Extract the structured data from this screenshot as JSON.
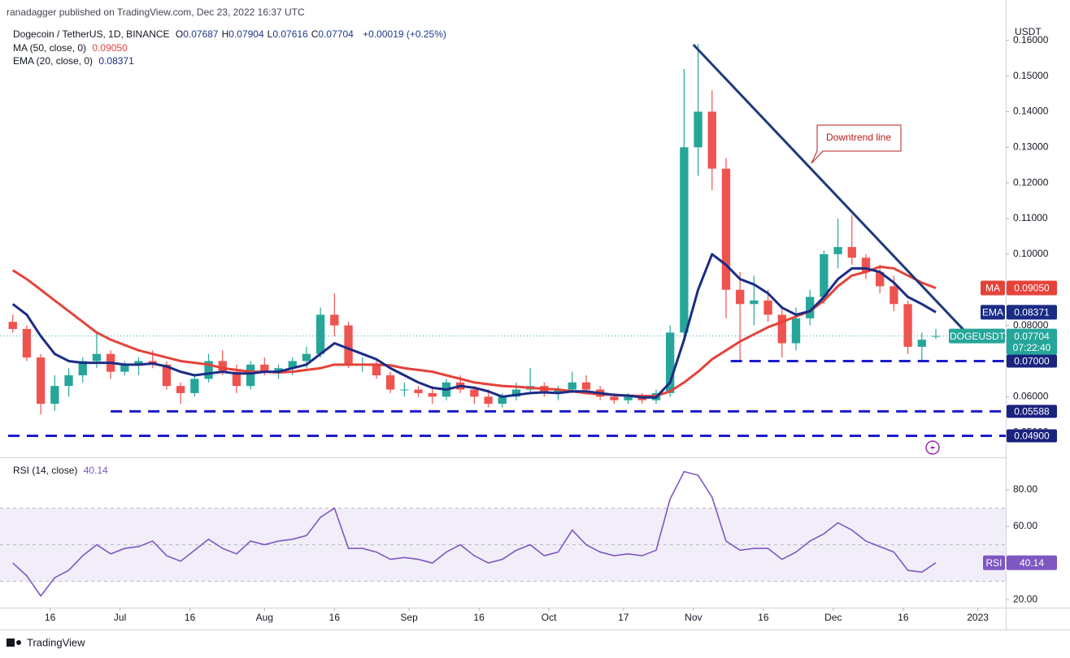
{
  "header": {
    "attribution": "ranadagger published on TradingView.com, Dec 23, 2022 16:37 UTC",
    "symbol": "Dogecoin / TetherUS, 1D, BINANCE",
    "ohlc": [
      {
        "key": "O",
        "label": "0.07687"
      },
      {
        "key": "H",
        "label": "0.07904"
      },
      {
        "key": "L",
        "label": "0.07616"
      },
      {
        "key": "C",
        "label": "0.07704"
      }
    ],
    "change": "+0.00019 (+0.25%)"
  },
  "footer": "TradingView",
  "chart_data": [
    {
      "type": "candlestick",
      "y_axis_label": "USDT",
      "symbol_tag": "DOGEUSDT",
      "last_close_label": "0.07704",
      "countdown": "07:22:40",
      "up_color": "#26a69a",
      "down_color": "#ef5350",
      "xlim": [
        "2022-06-07",
        "2023-01-07"
      ],
      "xticks": [
        {
          "value": "2022-06-16",
          "label": "16"
        },
        {
          "value": "2022-07-01",
          "label": "Jul"
        },
        {
          "value": "2022-07-16",
          "label": "16"
        },
        {
          "value": "2022-08-01",
          "label": "Aug"
        },
        {
          "value": "2022-08-16",
          "label": "16"
        },
        {
          "value": "2022-09-01",
          "label": "Sep"
        },
        {
          "value": "2022-09-16",
          "label": "16"
        },
        {
          "value": "2022-10-01",
          "label": "Oct"
        },
        {
          "value": "2022-10-17",
          "label": "17"
        },
        {
          "value": "2022-11-01",
          "label": "Nov"
        },
        {
          "value": "2022-11-16",
          "label": "16"
        },
        {
          "value": "2022-12-01",
          "label": "Dec"
        },
        {
          "value": "2022-12-16",
          "label": "16"
        },
        {
          "value": "2023-01-01",
          "label": "2023"
        }
      ],
      "ylim": [
        0.0432,
        0.1645
      ],
      "yticks": [
        {
          "value": 0.05,
          "label": "0.05000"
        },
        {
          "value": 0.06,
          "label": "0.06000"
        },
        {
          "value": 0.07,
          "label": "0.07000"
        },
        {
          "value": 0.08,
          "label": "0.08000"
        },
        {
          "value": 0.09,
          "label": "0.09000"
        },
        {
          "value": 0.1,
          "label": "0.10000"
        },
        {
          "value": 0.11,
          "label": "0.11000"
        },
        {
          "value": 0.12,
          "label": "0.12000"
        },
        {
          "value": 0.13,
          "label": "0.13000"
        },
        {
          "value": 0.14,
          "label": "0.14000"
        },
        {
          "value": 0.15,
          "label": "0.15000"
        },
        {
          "value": 0.16,
          "label": "0.16000"
        }
      ],
      "x": [
        "2022-06-08",
        "2022-06-11",
        "2022-06-14",
        "2022-06-17",
        "2022-06-20",
        "2022-06-23",
        "2022-06-26",
        "2022-06-29",
        "2022-07-02",
        "2022-07-05",
        "2022-07-08",
        "2022-07-11",
        "2022-07-14",
        "2022-07-17",
        "2022-07-20",
        "2022-07-23",
        "2022-07-26",
        "2022-07-29",
        "2022-08-01",
        "2022-08-04",
        "2022-08-07",
        "2022-08-10",
        "2022-08-13",
        "2022-08-16",
        "2022-08-19",
        "2022-08-22",
        "2022-08-25",
        "2022-08-28",
        "2022-08-31",
        "2022-09-03",
        "2022-09-06",
        "2022-09-09",
        "2022-09-12",
        "2022-09-15",
        "2022-09-18",
        "2022-09-21",
        "2022-09-24",
        "2022-09-27",
        "2022-09-30",
        "2022-10-03",
        "2022-10-06",
        "2022-10-09",
        "2022-10-12",
        "2022-10-15",
        "2022-10-18",
        "2022-10-21",
        "2022-10-24",
        "2022-10-27",
        "2022-10-30",
        "2022-11-02",
        "2022-11-05",
        "2022-11-08",
        "2022-11-11",
        "2022-11-14",
        "2022-11-17",
        "2022-11-20",
        "2022-11-23",
        "2022-11-26",
        "2022-11-29",
        "2022-12-02",
        "2022-12-05",
        "2022-12-08",
        "2022-12-11",
        "2022-12-14",
        "2022-12-17",
        "2022-12-20",
        "2022-12-23"
      ],
      "open": [
        0.081,
        0.079,
        0.071,
        0.058,
        0.063,
        0.066,
        0.07,
        0.072,
        0.067,
        0.069,
        0.07,
        0.069,
        0.063,
        0.061,
        0.065,
        0.07,
        0.067,
        0.063,
        0.069,
        0.067,
        0.068,
        0.07,
        0.072,
        0.083,
        0.08,
        0.069,
        0.069,
        0.066,
        0.062,
        0.062,
        0.061,
        0.06,
        0.064,
        0.062,
        0.06,
        0.058,
        0.06,
        0.062,
        0.063,
        0.061,
        0.062,
        0.064,
        0.062,
        0.06,
        0.059,
        0.06,
        0.059,
        0.061,
        0.078,
        0.13,
        0.14,
        0.124,
        0.09,
        0.086,
        0.087,
        0.083,
        0.075,
        0.082,
        0.088,
        0.1,
        0.102,
        0.099,
        0.095,
        0.091,
        0.086,
        0.074,
        0.07687
      ],
      "high": [
        0.083,
        0.08,
        0.072,
        0.066,
        0.068,
        0.071,
        0.078,
        0.073,
        0.07,
        0.071,
        0.073,
        0.07,
        0.064,
        0.066,
        0.072,
        0.073,
        0.069,
        0.07,
        0.071,
        0.069,
        0.071,
        0.074,
        0.085,
        0.089,
        0.081,
        0.071,
        0.07,
        0.067,
        0.064,
        0.063,
        0.063,
        0.065,
        0.066,
        0.063,
        0.062,
        0.061,
        0.064,
        0.068,
        0.064,
        0.063,
        0.067,
        0.066,
        0.063,
        0.061,
        0.061,
        0.061,
        0.062,
        0.08,
        0.152,
        0.159,
        0.146,
        0.127,
        0.095,
        0.094,
        0.09,
        0.085,
        0.085,
        0.09,
        0.101,
        0.11,
        0.111,
        0.1,
        0.097,
        0.094,
        0.087,
        0.078,
        0.07904
      ],
      "low": [
        0.078,
        0.07,
        0.055,
        0.056,
        0.06,
        0.064,
        0.068,
        0.065,
        0.066,
        0.066,
        0.068,
        0.062,
        0.058,
        0.06,
        0.064,
        0.066,
        0.061,
        0.062,
        0.066,
        0.065,
        0.066,
        0.068,
        0.071,
        0.077,
        0.068,
        0.067,
        0.065,
        0.061,
        0.06,
        0.06,
        0.058,
        0.059,
        0.061,
        0.058,
        0.057,
        0.057,
        0.059,
        0.061,
        0.06,
        0.059,
        0.061,
        0.061,
        0.059,
        0.058,
        0.058,
        0.058,
        0.058,
        0.06,
        0.076,
        0.122,
        0.118,
        0.082,
        0.07,
        0.08,
        0.081,
        0.071,
        0.073,
        0.08,
        0.086,
        0.096,
        0.097,
        0.093,
        0.089,
        0.084,
        0.072,
        0.07,
        0.07616
      ],
      "close": [
        0.079,
        0.071,
        0.058,
        0.063,
        0.066,
        0.07,
        0.072,
        0.067,
        0.069,
        0.07,
        0.069,
        0.063,
        0.061,
        0.065,
        0.07,
        0.067,
        0.063,
        0.069,
        0.067,
        0.068,
        0.07,
        0.072,
        0.083,
        0.08,
        0.069,
        0.069,
        0.066,
        0.062,
        0.062,
        0.061,
        0.06,
        0.064,
        0.062,
        0.06,
        0.058,
        0.06,
        0.062,
        0.063,
        0.061,
        0.062,
        0.064,
        0.062,
        0.06,
        0.059,
        0.06,
        0.059,
        0.061,
        0.078,
        0.13,
        0.14,
        0.124,
        0.09,
        0.086,
        0.087,
        0.083,
        0.075,
        0.082,
        0.088,
        0.1,
        0.102,
        0.099,
        0.095,
        0.091,
        0.086,
        0.074,
        0.076,
        0.07704
      ],
      "series": [
        {
          "name": "MA (50, close, 0)",
          "tag": "MA",
          "color": "#e5433a",
          "last_label": "0.09050",
          "values": [
            0.0955,
            0.093,
            0.09,
            0.087,
            0.084,
            0.081,
            0.078,
            0.076,
            0.0745,
            0.073,
            0.072,
            0.071,
            0.07,
            0.0695,
            0.069,
            0.068,
            0.0675,
            0.067,
            0.067,
            0.0668,
            0.067,
            0.0675,
            0.068,
            0.069,
            0.069,
            0.069,
            0.069,
            0.0688,
            0.068,
            0.0675,
            0.067,
            0.066,
            0.065,
            0.064,
            0.0635,
            0.063,
            0.0628,
            0.0625,
            0.0622,
            0.062,
            0.0615,
            0.061,
            0.0607,
            0.0605,
            0.0603,
            0.0602,
            0.0602,
            0.0615,
            0.064,
            0.067,
            0.0705,
            0.073,
            0.0755,
            0.0775,
            0.0795,
            0.081,
            0.0825,
            0.084,
            0.087,
            0.091,
            0.094,
            0.095,
            0.0965,
            0.096,
            0.094,
            0.092,
            0.0905
          ]
        },
        {
          "name": "EMA (20, close, 0)",
          "tag": "EMA",
          "color": "#1b2c85",
          "last_label": "0.08371",
          "values": [
            0.086,
            0.083,
            0.077,
            0.072,
            0.07,
            0.0695,
            0.0695,
            0.0695,
            0.069,
            0.069,
            0.0693,
            0.0685,
            0.067,
            0.066,
            0.0665,
            0.067,
            0.0665,
            0.0665,
            0.067,
            0.067,
            0.068,
            0.069,
            0.072,
            0.075,
            0.0735,
            0.072,
            0.0705,
            0.068,
            0.066,
            0.064,
            0.0625,
            0.062,
            0.063,
            0.0625,
            0.0615,
            0.06,
            0.0605,
            0.061,
            0.0612,
            0.061,
            0.0615,
            0.0615,
            0.061,
            0.0605,
            0.0603,
            0.0598,
            0.0598,
            0.064,
            0.076,
            0.09,
            0.1,
            0.097,
            0.093,
            0.0915,
            0.089,
            0.085,
            0.083,
            0.084,
            0.088,
            0.093,
            0.096,
            0.096,
            0.095,
            0.092,
            0.088,
            0.086,
            0.08371
          ]
        }
      ],
      "levels": [
        {
          "value": 0.07,
          "label": "0.07000",
          "start": "2022-11-09"
        },
        {
          "value": 0.05588,
          "label": "0.05588",
          "start": "2022-06-29"
        },
        {
          "value": 0.049,
          "label": "0.04900",
          "start": "2022-06-07"
        }
      ],
      "annotations": [
        {
          "text": "Downtrend line",
          "line": {
            "x": [
              "2022-11-01",
              "2022-12-29"
            ],
            "y": [
              0.1588,
              0.0787
            ]
          }
        }
      ]
    },
    {
      "type": "line",
      "name": "RSI (14, close)",
      "tag": "RSI",
      "color": "#7e57c2",
      "ylim": [
        15.6,
        96.9
      ],
      "yticks": [
        {
          "value": 20,
          "label": "20.00"
        },
        {
          "value": 40,
          "label": "40.00"
        },
        {
          "value": 60,
          "label": "60.00"
        },
        {
          "value": 80,
          "label": "80.00"
        }
      ],
      "band": [
        30,
        70
      ],
      "midline": 50,
      "values": [
        40,
        33,
        22,
        32,
        36,
        44,
        50,
        45,
        48,
        49,
        52,
        44,
        41,
        47,
        53,
        48,
        45,
        52,
        50,
        52,
        53,
        55,
        65,
        70,
        48,
        48,
        46,
        42,
        43,
        42,
        40,
        46,
        50,
        44,
        40,
        42,
        47,
        50,
        44,
        46,
        58,
        50,
        46,
        44,
        45,
        44,
        47,
        75,
        90,
        88,
        76,
        52,
        47,
        48,
        48,
        42,
        46,
        52,
        56,
        62,
        58,
        52,
        49,
        46,
        36,
        35,
        40.14
      ]
    }
  ]
}
